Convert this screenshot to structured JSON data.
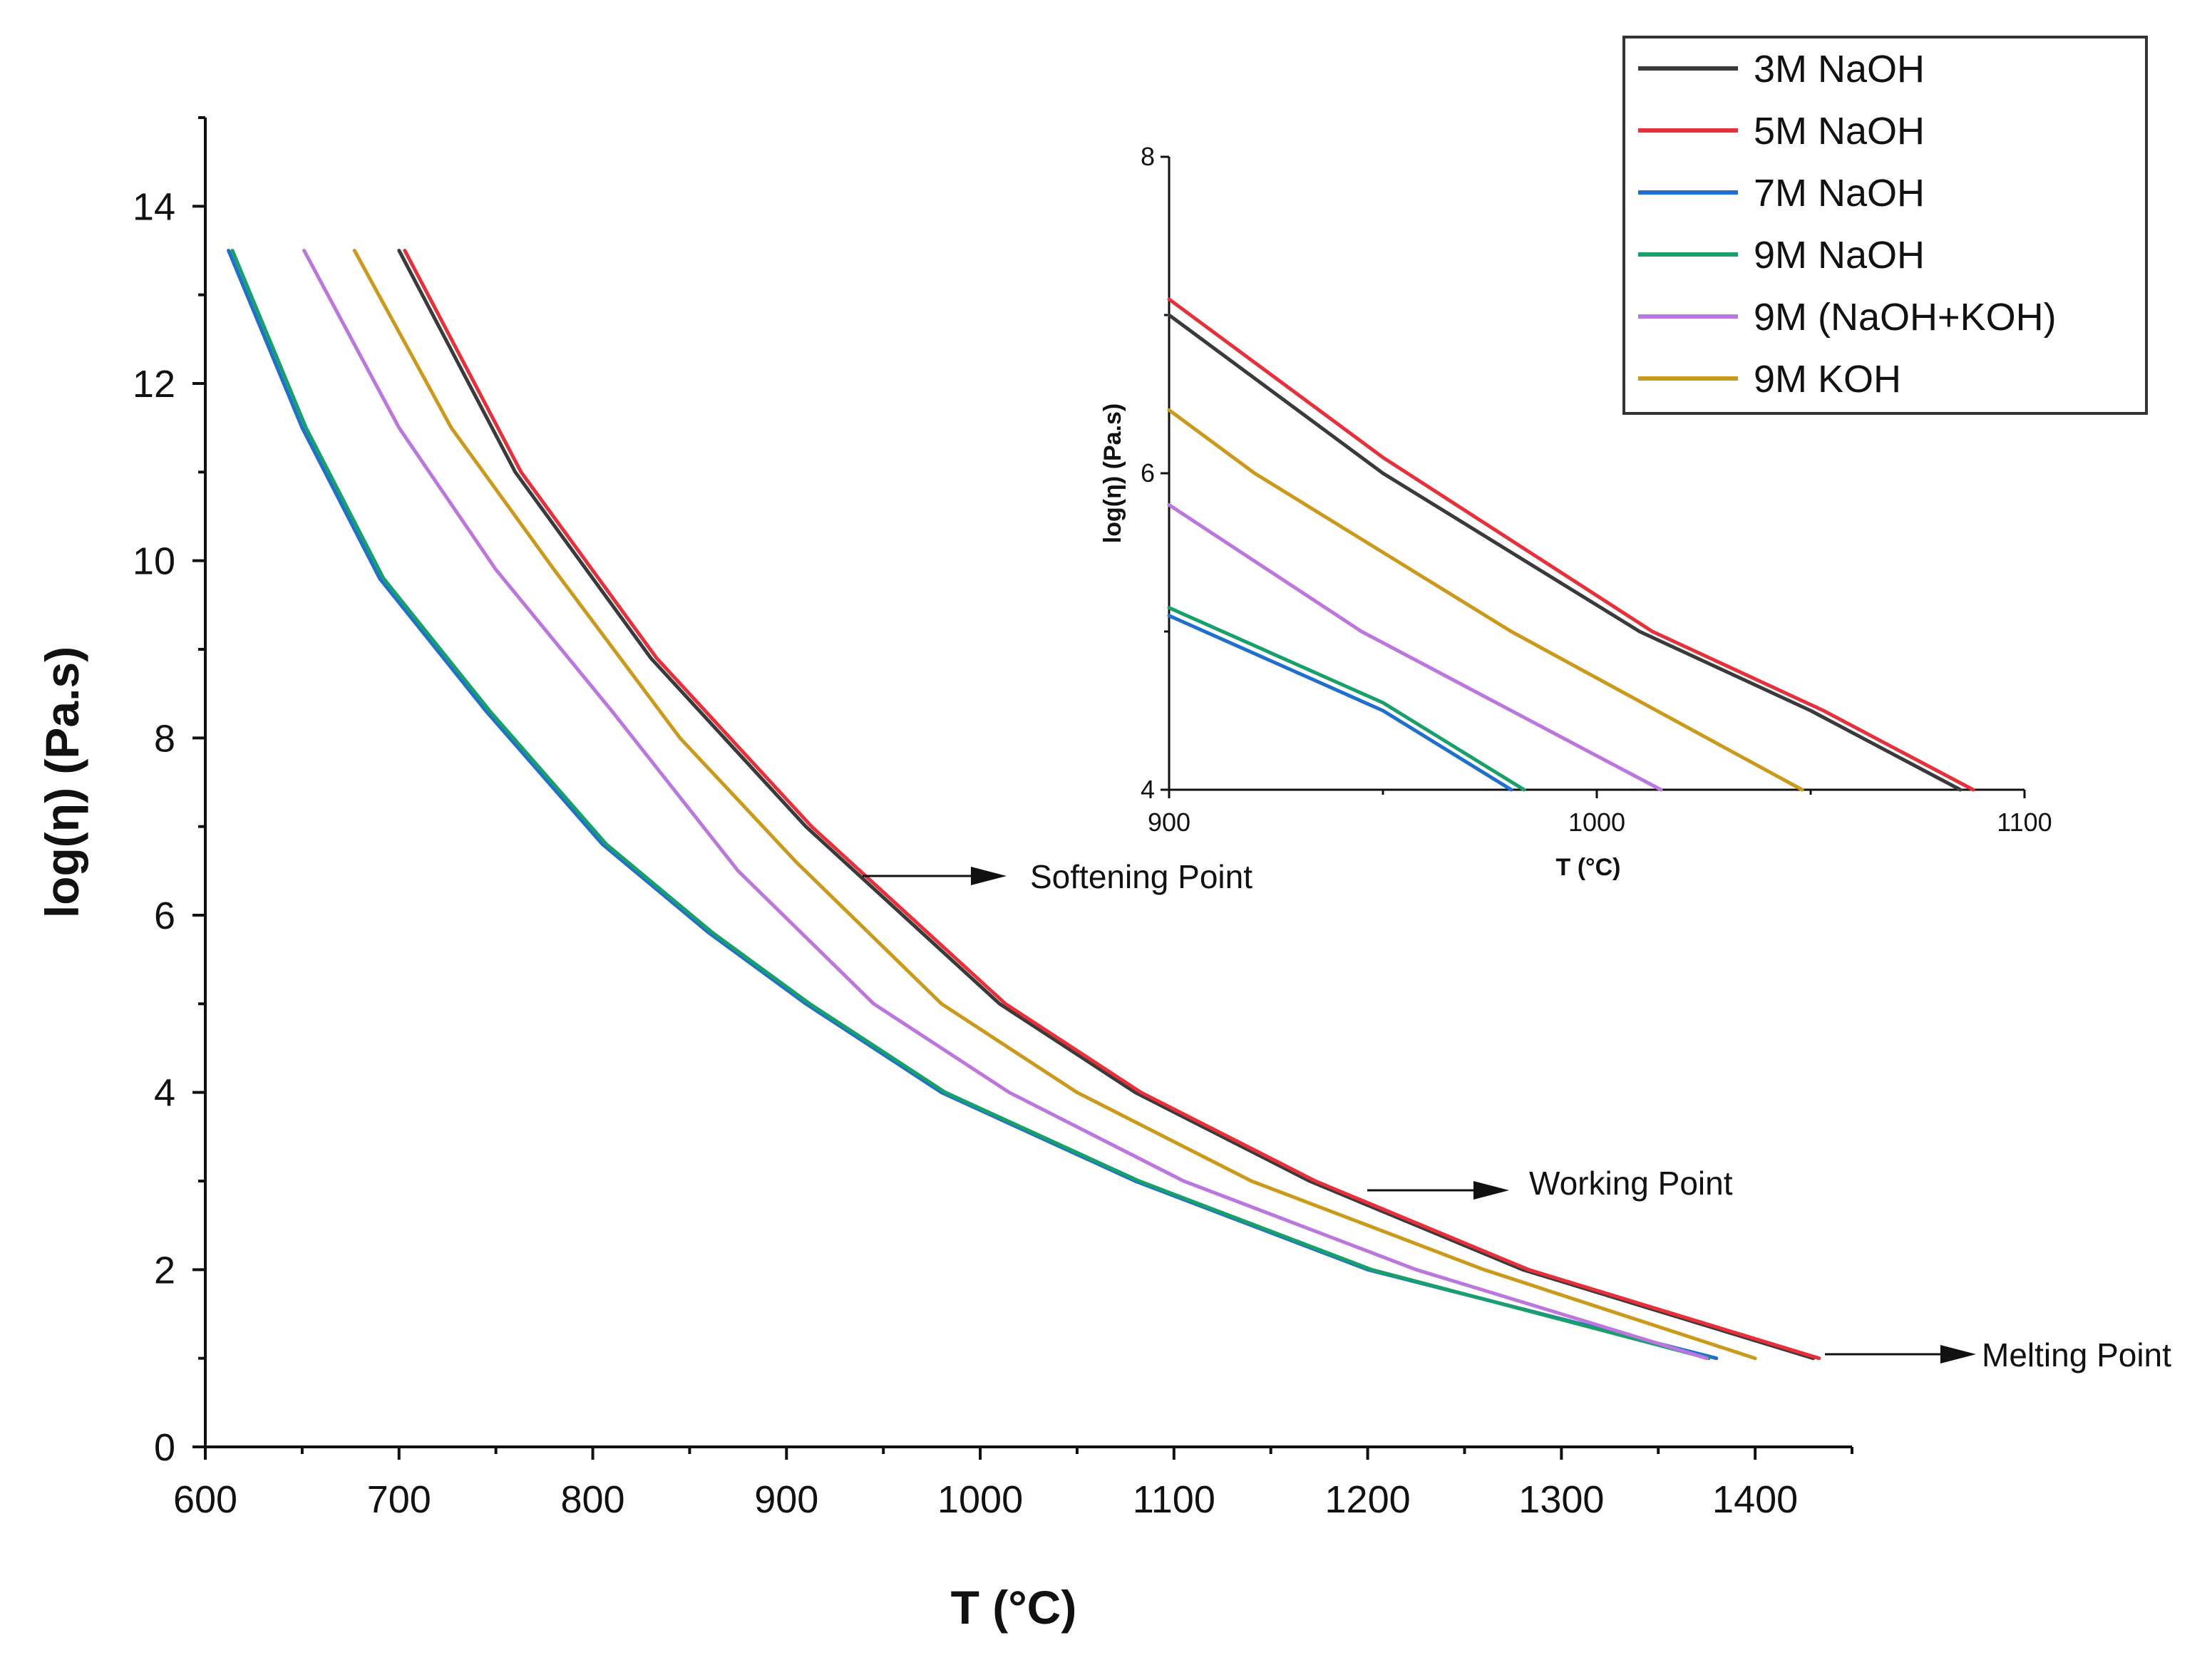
{
  "chart_data": [
    {
      "type": "line",
      "id": "main",
      "title": "",
      "xlabel": "T (°C)",
      "ylabel": "log(η) (Pa.s)",
      "xlim": [
        600,
        1450
      ],
      "ylim": [
        0,
        15
      ],
      "xticks": [
        600,
        700,
        800,
        900,
        1000,
        1100,
        1200,
        1300,
        1400
      ],
      "yticks": [
        0,
        2,
        4,
        6,
        8,
        10,
        12,
        14
      ],
      "grid": false,
      "series": [
        {
          "name": "3M NaOH",
          "color": "#3a3a3a",
          "x": [
            700,
            760,
            830,
            910,
            1010,
            1080,
            1170,
            1280,
            1430
          ],
          "y": [
            13.5,
            11,
            8.9,
            7,
            5,
            4,
            3,
            2,
            1
          ]
        },
        {
          "name": "5M NaOH",
          "color": "#e8303a",
          "x": [
            703,
            763,
            833,
            913,
            1013,
            1083,
            1173,
            1283,
            1433
          ],
          "y": [
            13.5,
            11,
            8.9,
            7,
            5,
            4,
            3,
            2,
            1
          ]
        },
        {
          "name": "7M NaOH",
          "color": "#1f6fd1",
          "x": [
            612,
            650,
            690,
            745,
            805,
            860,
            910,
            980,
            1080,
            1200,
            1380
          ],
          "y": [
            13.5,
            11.5,
            9.8,
            8.3,
            6.8,
            5.8,
            5,
            4,
            3,
            2,
            1
          ]
        },
        {
          "name": "9M NaOH",
          "color": "#18a06a",
          "x": [
            614,
            652,
            692,
            747,
            807,
            862,
            912,
            982,
            1082,
            1202,
            1376
          ],
          "y": [
            13.5,
            11.5,
            9.8,
            8.3,
            6.8,
            5.8,
            5,
            4,
            3,
            2,
            1
          ]
        },
        {
          "name": "9M (NaOH+KOH)",
          "color": "#bb77dd",
          "x": [
            651,
            700,
            750,
            810,
            875,
            945,
            1015,
            1105,
            1225,
            1375
          ],
          "y": [
            13.5,
            11.5,
            9.9,
            8.3,
            6.5,
            5,
            4,
            3,
            2,
            1
          ]
        },
        {
          "name": "9M KOH",
          "color": "#cc9a1a",
          "x": [
            677,
            727,
            780,
            845,
            905,
            980,
            1050,
            1140,
            1260,
            1400
          ],
          "y": [
            13.5,
            11.5,
            9.9,
            8,
            6.6,
            5,
            4,
            3,
            2,
            1
          ]
        }
      ],
      "annotations": [
        {
          "text": "Softening Point",
          "x": 935,
          "y": 6.3
        },
        {
          "text": "Working Point",
          "x": 1200,
          "y": 2.8
        },
        {
          "text": "Melting Point",
          "x": 1435,
          "y": 1
        }
      ]
    },
    {
      "type": "line",
      "id": "inset",
      "title": "",
      "xlabel": "T (°C)",
      "ylabel": "log(η) (Pa.s)",
      "xlim": [
        900,
        1100
      ],
      "ylim": [
        4,
        8
      ],
      "xticks": [
        900,
        1000,
        1100
      ],
      "yticks": [
        4,
        6,
        8
      ],
      "grid": false,
      "series": [
        {
          "name": "3M NaOH",
          "color": "#3a3a3a",
          "x": [
            900,
            950,
            1010,
            1050,
            1085
          ],
          "y": [
            7,
            6,
            5,
            4.5,
            4
          ]
        },
        {
          "name": "5M NaOH",
          "color": "#e8303a",
          "x": [
            900,
            950,
            1013,
            1053,
            1088
          ],
          "y": [
            7.1,
            6.1,
            5,
            4.5,
            4
          ]
        },
        {
          "name": "7M NaOH",
          "color": "#1f6fd1",
          "x": [
            900,
            950,
            980
          ],
          "y": [
            5.1,
            4.5,
            4
          ]
        },
        {
          "name": "9M NaOH",
          "color": "#18a06a",
          "x": [
            900,
            950,
            983
          ],
          "y": [
            5.15,
            4.55,
            4
          ]
        },
        {
          "name": "9M (NaOH+KOH)",
          "color": "#bb77dd",
          "x": [
            900,
            945,
            1015
          ],
          "y": [
            5.8,
            5,
            4
          ]
        },
        {
          "name": "9M KOH",
          "color": "#cc9a1a",
          "x": [
            900,
            920,
            980,
            1048
          ],
          "y": [
            6.4,
            6,
            5,
            4
          ]
        }
      ]
    }
  ],
  "legend": {
    "position": "top-right",
    "entries": [
      "3M NaOH",
      "5M NaOH",
      "7M NaOH",
      "9M NaOH",
      "9M (NaOH+KOH)",
      "9M KOH"
    ]
  }
}
